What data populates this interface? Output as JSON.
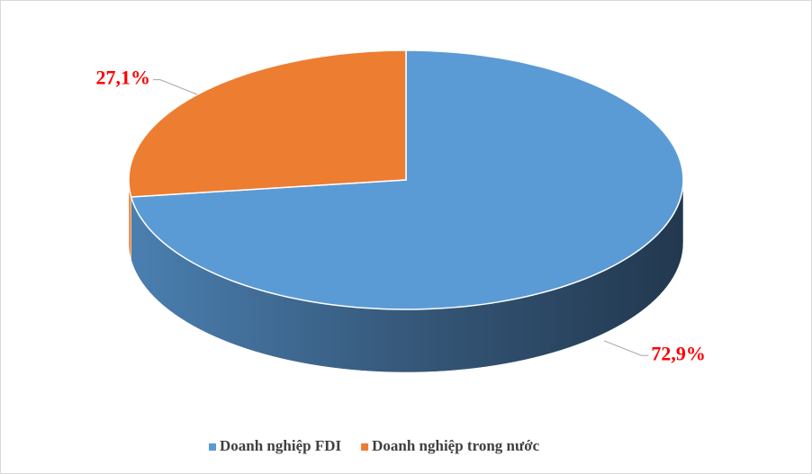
{
  "chart_data": {
    "type": "pie",
    "categories": [
      "Doanh nghiệp FDI",
      "Doanh nghiệp trong nước"
    ],
    "values": [
      72.9,
      27.1
    ],
    "value_labels": [
      "72,9%",
      "27,1%"
    ],
    "colors": [
      "#5b9bd5",
      "#ed7d31"
    ],
    "legend": "bottom"
  }
}
